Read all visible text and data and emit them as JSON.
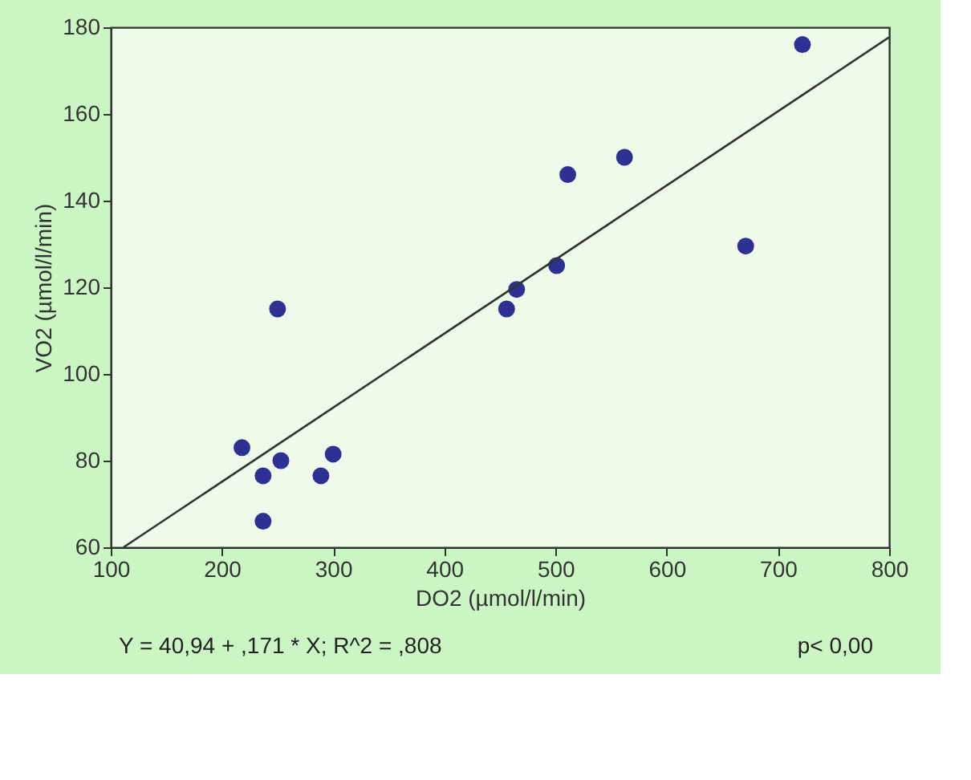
{
  "chart_data": {
    "type": "scatter",
    "xlabel": "DO2 (µmol/l/min)",
    "ylabel": "VO2 (µmol/l/min)",
    "xlim": [
      100,
      800
    ],
    "xticks": [
      100,
      200,
      300,
      400,
      500,
      600,
      700,
      800
    ],
    "ylim": [
      60,
      180
    ],
    "yticks": [
      60,
      80,
      100,
      120,
      140,
      160,
      180
    ],
    "grid": false,
    "series": [
      {
        "marker": "circle",
        "color": "#2e3192",
        "x": [
          237,
          218,
          237,
          253,
          250,
          289,
          300,
          456,
          465,
          501,
          511,
          562,
          671,
          722
        ],
        "values": [
          66,
          83,
          76.5,
          80,
          115,
          76.5,
          81.5,
          115,
          119.5,
          125,
          146,
          150,
          129.5,
          176
        ]
      },
      {
        "type": "line",
        "color": "#333333",
        "x": [
          111.5,
          800
        ],
        "values": [
          60,
          177.7
        ]
      }
    ],
    "annotations": [
      "Y = 40,94 + ,171 * X; R^2 = ,808",
      "p< 0,00"
    ]
  }
}
